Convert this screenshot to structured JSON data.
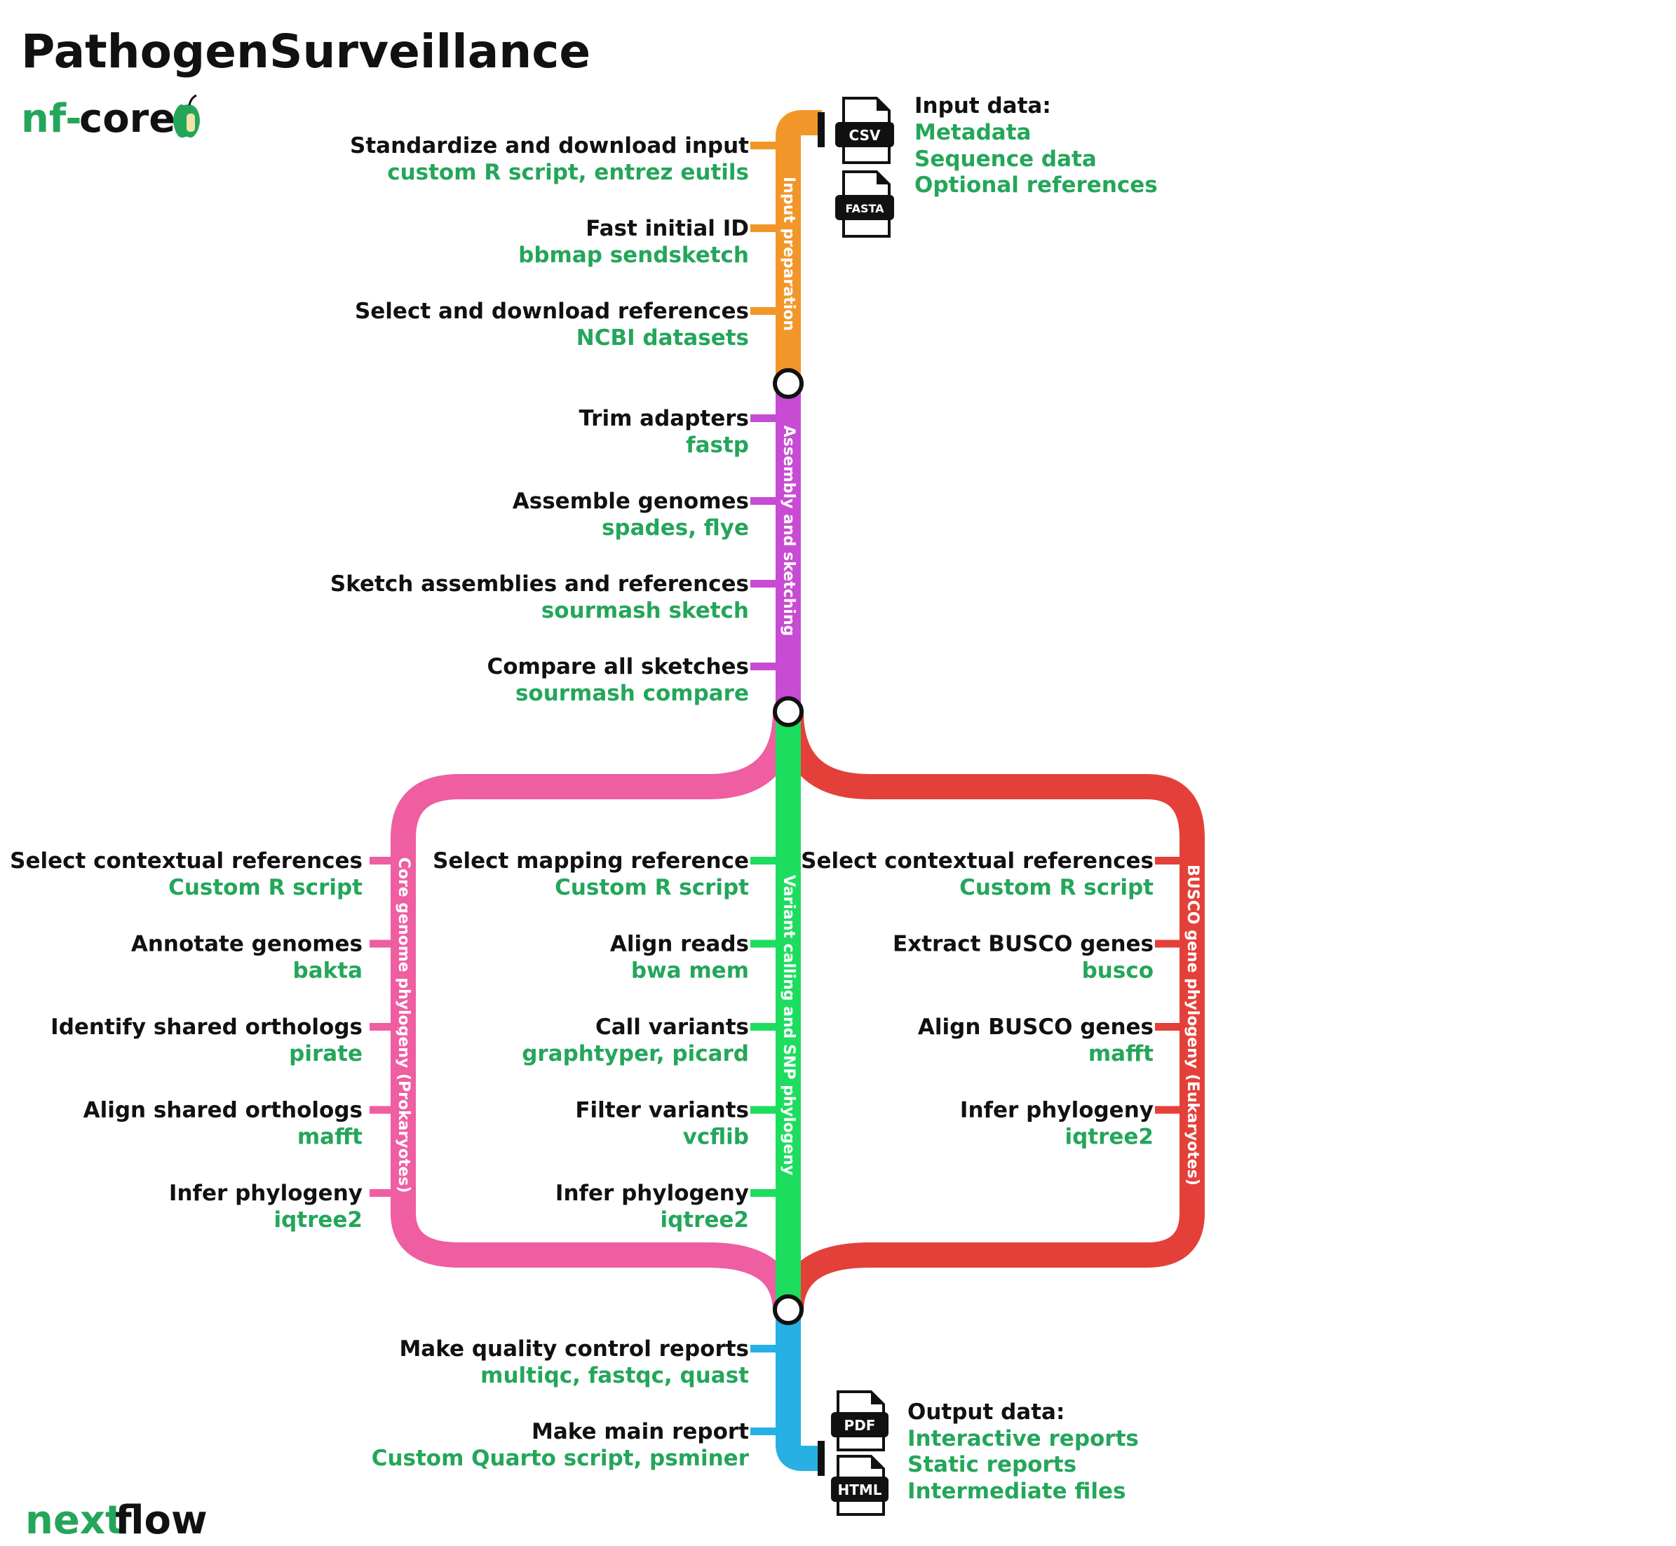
{
  "title": "PathogenSurveillance",
  "logos": {
    "nfcore_prefix": "nf-",
    "nfcore_word": "core",
    "nextflow_prefix": "next",
    "nextflow_word": "flow"
  },
  "colors": {
    "input": "#f3962a",
    "assembly": "#c84bd3",
    "prokaryote": "#ee5ea1",
    "variant": "#1ddd5e",
    "eukaryote": "#e4403a",
    "report": "#27b0e3",
    "tool_text": "#24a65a"
  },
  "input": {
    "heading": "Input data:",
    "items": [
      "Metadata",
      "Sequence data",
      "Optional references"
    ],
    "files": [
      "CSV",
      "FASTA"
    ]
  },
  "output": {
    "heading": "Output data:",
    "items": [
      "Interactive reports",
      "Static reports",
      "Intermediate files"
    ],
    "files": [
      "PDF",
      "HTML"
    ]
  },
  "lines": {
    "input": {
      "name": "Input preparation",
      "steps": [
        {
          "name": "Standardize and download input",
          "tool": "custom R script, entrez eutils"
        },
        {
          "name": "Fast initial ID",
          "tool": "bbmap sendsketch"
        },
        {
          "name": "Select and download references",
          "tool": "NCBI datasets"
        }
      ]
    },
    "assembly": {
      "name": "Assembly and sketching",
      "steps": [
        {
          "name": "Trim adapters",
          "tool": "fastp"
        },
        {
          "name": "Assemble genomes",
          "tool": "spades, flye"
        },
        {
          "name": "Sketch assemblies and references",
          "tool": "sourmash sketch"
        },
        {
          "name": "Compare all sketches",
          "tool": "sourmash compare"
        }
      ]
    },
    "prokaryote": {
      "name": "Core genome phylogeny (Prokaryotes)",
      "steps": [
        {
          "name": "Select contextual references",
          "tool": "Custom R script"
        },
        {
          "name": "Annotate genomes",
          "tool": "bakta"
        },
        {
          "name": "Identify shared orthologs",
          "tool": "pirate"
        },
        {
          "name": "Align shared orthologs",
          "tool": "mafft"
        },
        {
          "name": "Infer phylogeny",
          "tool": "iqtree2"
        }
      ]
    },
    "variant": {
      "name": "Variant calling and SNP phylogeny",
      "steps": [
        {
          "name": "Select mapping reference",
          "tool": "Custom R script"
        },
        {
          "name": "Align reads",
          "tool": "bwa mem"
        },
        {
          "name": "Call variants",
          "tool": "graphtyper, picard"
        },
        {
          "name": "Filter variants",
          "tool": "vcflib"
        },
        {
          "name": "Infer phylogeny",
          "tool": "iqtree2"
        }
      ]
    },
    "eukaryote": {
      "name": "BUSCO gene phylogeny (Eukaryotes)",
      "steps": [
        {
          "name": "Select contextual references",
          "tool": "Custom R script"
        },
        {
          "name": "Extract BUSCO genes",
          "tool": "busco"
        },
        {
          "name": "Align BUSCO genes",
          "tool": "mafft"
        },
        {
          "name": "Infer phylogeny",
          "tool": "iqtree2"
        }
      ]
    },
    "report": {
      "steps": [
        {
          "name": "Make quality control reports",
          "tool": "multiqc, fastqc, quast"
        },
        {
          "name": "Make main report",
          "tool": "Custom Quarto script, psminer"
        }
      ]
    }
  }
}
